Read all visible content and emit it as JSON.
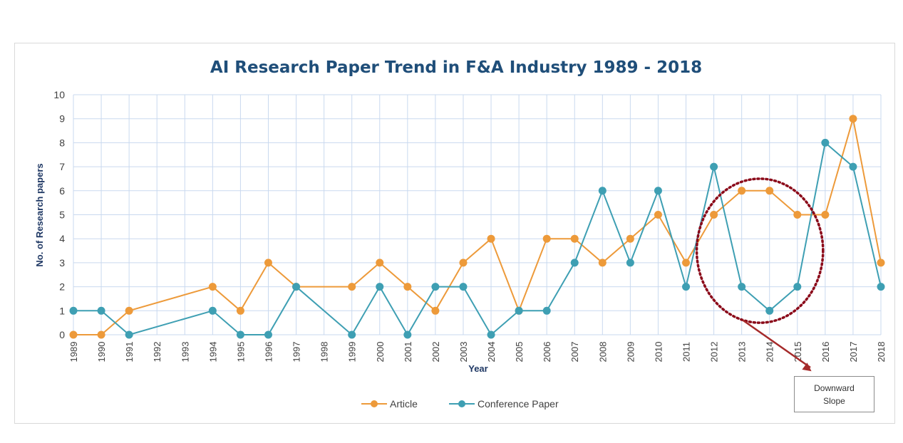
{
  "chart_data": {
    "type": "line",
    "title": "AI Research Paper Trend in F&A Industry 1989 - 2018",
    "xlabel": "Year",
    "ylabel": "No. of Research papers",
    "ylim": [
      0,
      10
    ],
    "yticks": [
      "0",
      "1",
      "2",
      "3",
      "4",
      "5",
      "6",
      "7",
      "8",
      "9",
      "10"
    ],
    "grid": true,
    "legend_position": "bottom",
    "categories": [
      "1989",
      "1990",
      "1991",
      "1992",
      "1993",
      "1994",
      "1995",
      "1996",
      "1997",
      "1998",
      "1999",
      "2000",
      "2001",
      "2002",
      "2003",
      "2004",
      "2005",
      "2006",
      "2007",
      "2008",
      "2009",
      "2010",
      "2011",
      "2012",
      "2013",
      "2014",
      "2015",
      "2016",
      "2017",
      "2018"
    ],
    "series": [
      {
        "name": "Article",
        "color": "#ED9A3A",
        "points": [
          {
            "x": "1989",
            "y": 0
          },
          {
            "x": "1990",
            "y": 0
          },
          {
            "x": "1991",
            "y": 1
          },
          {
            "x": "1994",
            "y": 2
          },
          {
            "x": "1995",
            "y": 1
          },
          {
            "x": "1996",
            "y": 3
          },
          {
            "x": "1997",
            "y": 2
          },
          {
            "x": "1999",
            "y": 2
          },
          {
            "x": "2000",
            "y": 3
          },
          {
            "x": "2001",
            "y": 2
          },
          {
            "x": "2002",
            "y": 1
          },
          {
            "x": "2003",
            "y": 3
          },
          {
            "x": "2004",
            "y": 4
          },
          {
            "x": "2005",
            "y": 1
          },
          {
            "x": "2006",
            "y": 4
          },
          {
            "x": "2007",
            "y": 4
          },
          {
            "x": "2008",
            "y": 3
          },
          {
            "x": "2009",
            "y": 4
          },
          {
            "x": "2010",
            "y": 5
          },
          {
            "x": "2011",
            "y": 3
          },
          {
            "x": "2012",
            "y": 5
          },
          {
            "x": "2013",
            "y": 6
          },
          {
            "x": "2014",
            "y": 6
          },
          {
            "x": "2015",
            "y": 5
          },
          {
            "x": "2016",
            "y": 5
          },
          {
            "x": "2017",
            "y": 9
          },
          {
            "x": "2018",
            "y": 3
          }
        ]
      },
      {
        "name": "Conference Paper",
        "color": "#3E9FB3",
        "points": [
          {
            "x": "1989",
            "y": 1
          },
          {
            "x": "1990",
            "y": 1
          },
          {
            "x": "1991",
            "y": 0
          },
          {
            "x": "1994",
            "y": 1
          },
          {
            "x": "1995",
            "y": 0
          },
          {
            "x": "1996",
            "y": 0
          },
          {
            "x": "1997",
            "y": 2
          },
          {
            "x": "1999",
            "y": 0
          },
          {
            "x": "2000",
            "y": 2
          },
          {
            "x": "2001",
            "y": 0
          },
          {
            "x": "2002",
            "y": 2
          },
          {
            "x": "2003",
            "y": 2
          },
          {
            "x": "2004",
            "y": 0
          },
          {
            "x": "2005",
            "y": 1
          },
          {
            "x": "2006",
            "y": 1
          },
          {
            "x": "2007",
            "y": 3
          },
          {
            "x": "2008",
            "y": 6
          },
          {
            "x": "2009",
            "y": 3
          },
          {
            "x": "2010",
            "y": 6
          },
          {
            "x": "2011",
            "y": 2
          },
          {
            "x": "2012",
            "y": 7
          },
          {
            "x": "2013",
            "y": 2
          },
          {
            "x": "2014",
            "y": 1
          },
          {
            "x": "2015",
            "y": 2
          },
          {
            "x": "2016",
            "y": 8
          },
          {
            "x": "2017",
            "y": 7
          },
          {
            "x": "2018",
            "y": 2
          }
        ]
      }
    ],
    "annotation": {
      "text": "Downward\nSlope",
      "highlight": {
        "from": "2012",
        "to": "2015"
      },
      "highlight_color": "#8B0A1A",
      "arrow_color": "#A52A2A"
    }
  }
}
